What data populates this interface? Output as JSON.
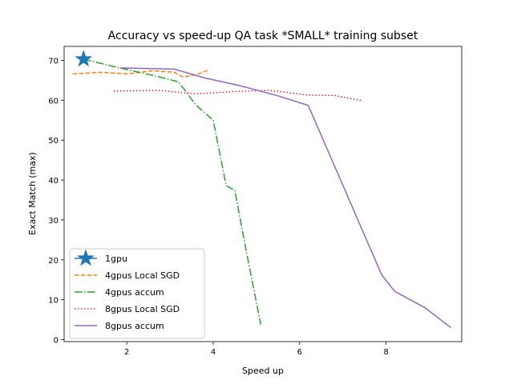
{
  "chart_data": {
    "type": "line",
    "title": "Accuracy vs speed-up QA task *SMALL* training subset",
    "xlabel": "Speed up",
    "ylabel": "Exact Match (max)",
    "xlim": [
      0.55,
      9.75
    ],
    "ylim": [
      -0.5,
      73.5
    ],
    "xticks": [
      2,
      4,
      6,
      8
    ],
    "yticks": [
      0,
      10,
      20,
      30,
      40,
      50,
      60,
      70
    ],
    "grid": false,
    "legend_position": "lower-left",
    "series": [
      {
        "name": "1gpu",
        "style": "star",
        "color": "#1f77b4",
        "points": [
          [
            1.0,
            70.3
          ]
        ]
      },
      {
        "name": "4gpus Local SGD",
        "style": "dashed",
        "color": "#ff7f0e",
        "points": [
          [
            0.75,
            66.6
          ],
          [
            1.4,
            67.0
          ],
          [
            2.0,
            66.6
          ],
          [
            2.6,
            67.4
          ],
          [
            3.1,
            67.0
          ],
          [
            3.3,
            65.8
          ],
          [
            3.6,
            66.4
          ],
          [
            3.9,
            67.6
          ]
        ]
      },
      {
        "name": "4gpus accum",
        "style": "dashdot",
        "color": "#2ca02c",
        "points": [
          [
            1.0,
            70.3
          ],
          [
            1.8,
            68.2
          ],
          [
            2.7,
            66.0
          ],
          [
            3.2,
            64.6
          ],
          [
            3.6,
            58.8
          ],
          [
            4.0,
            55.0
          ],
          [
            4.3,
            38.6
          ],
          [
            4.5,
            37.4
          ],
          [
            4.75,
            23.0
          ],
          [
            5.1,
            3.8
          ]
        ]
      },
      {
        "name": "8gpus Local SGD",
        "style": "dotted",
        "color": "#d62728",
        "points": [
          [
            1.7,
            62.3
          ],
          [
            2.7,
            62.5
          ],
          [
            3.6,
            61.6
          ],
          [
            4.5,
            62.2
          ],
          [
            5.3,
            62.5
          ],
          [
            6.2,
            61.3
          ],
          [
            6.8,
            61.2
          ],
          [
            7.45,
            59.9
          ]
        ]
      },
      {
        "name": "8gpus accum",
        "style": "solid",
        "color": "#9467bd",
        "points": [
          [
            1.85,
            68.1
          ],
          [
            3.1,
            67.8
          ],
          [
            3.8,
            65.6
          ],
          [
            4.6,
            63.7
          ],
          [
            5.5,
            61.1
          ],
          [
            6.2,
            58.7
          ],
          [
            7.9,
            16.2
          ],
          [
            8.2,
            12.1
          ],
          [
            8.9,
            8.0
          ],
          [
            9.5,
            3.0
          ]
        ]
      }
    ]
  }
}
